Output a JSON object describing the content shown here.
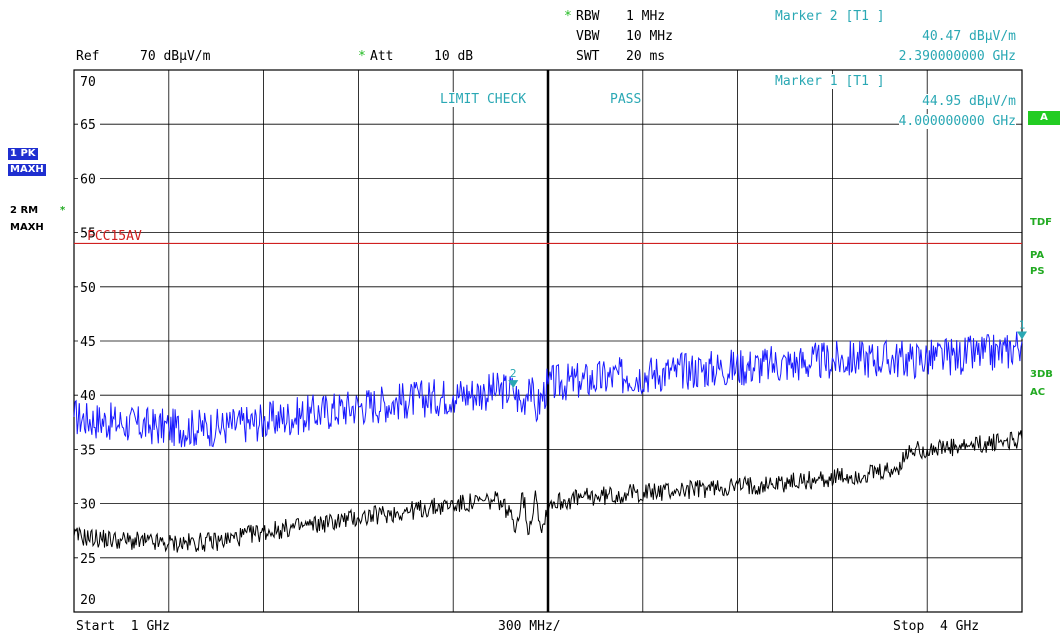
{
  "header": {
    "rbw_label": "RBW",
    "rbw_value": "1 MHz",
    "vbw_label": "VBW",
    "vbw_value": "10 MHz",
    "swt_label": "SWT",
    "swt_value": "20 ms",
    "ref_label": "Ref",
    "ref_value": "70 dBµV/m",
    "att_label": "Att",
    "att_value": "10 dB",
    "star": "*"
  },
  "markers": [
    {
      "title": "Marker 2 [T1 ]",
      "level": "40.47 dBµV/m",
      "freq": "2.390000000 GHz"
    },
    {
      "title": "Marker 1 [T1 ]",
      "level": "44.95 dBµV/m",
      "freq": "4.000000000 GHz"
    }
  ],
  "limit_check": {
    "label": "LIMIT CHECK",
    "result": "PASS"
  },
  "limit_line_label": "FCC15AV",
  "left_panel": {
    "trace1_label": "1 PK",
    "trace1_mode": "MAXH",
    "trace2_label": "2 RM",
    "trace2_mode": "MAXH",
    "trace2_star": "*"
  },
  "right_panel": {
    "a_box": "A",
    "tdf": "TDF",
    "pa": "PA",
    "ps": "PS",
    "db3": "3DB",
    "ac": "AC"
  },
  "footer": {
    "start": "Start  1 GHz",
    "span": "300 MHz/",
    "stop": "Stop  4 GHz"
  },
  "colors": {
    "grid": "#000000",
    "pk_trace": "#1a1aff",
    "rm_trace": "#000000",
    "limit": "#d02020",
    "marker": "#2aa8b4"
  },
  "chart_data": {
    "type": "line",
    "x_unit": "GHz",
    "xlim": [
      1.0,
      4.0
    ],
    "ylim": [
      20,
      70
    ],
    "y_unit": "dBµV/m",
    "yticks": [
      20,
      25,
      30,
      35,
      40,
      45,
      50,
      55,
      60,
      65,
      70
    ],
    "grid": true,
    "limit_line": {
      "name": "FCC15AV",
      "y": 54
    },
    "series": [
      {
        "name": "1 PK MAXH",
        "points": [
          [
            1.0,
            38.0
          ],
          [
            1.15,
            37.4
          ],
          [
            1.3,
            37.0
          ],
          [
            1.45,
            37.0
          ],
          [
            1.6,
            37.6
          ],
          [
            1.75,
            38.3
          ],
          [
            1.9,
            39.0
          ],
          [
            2.05,
            39.5
          ],
          [
            2.2,
            40.0
          ],
          [
            2.3,
            40.3
          ],
          [
            2.39,
            40.47
          ],
          [
            2.42,
            39.0
          ],
          [
            2.44,
            41.5
          ],
          [
            2.46,
            38.5
          ],
          [
            2.5,
            41.0
          ],
          [
            2.6,
            41.3
          ],
          [
            2.75,
            41.8
          ],
          [
            2.9,
            42.2
          ],
          [
            3.05,
            42.5
          ],
          [
            3.2,
            42.8
          ],
          [
            3.35,
            43.1
          ],
          [
            3.5,
            43.4
          ],
          [
            3.65,
            43.3
          ],
          [
            3.8,
            43.6
          ],
          [
            3.95,
            44.0
          ],
          [
            4.0,
            44.95
          ]
        ]
      },
      {
        "name": "2 RM MAXH",
        "points": [
          [
            1.0,
            27.0
          ],
          [
            1.15,
            26.6
          ],
          [
            1.3,
            26.3
          ],
          [
            1.45,
            26.5
          ],
          [
            1.6,
            27.4
          ],
          [
            1.75,
            28.0
          ],
          [
            1.9,
            28.7
          ],
          [
            2.05,
            29.3
          ],
          [
            2.2,
            29.9
          ],
          [
            2.35,
            30.3
          ],
          [
            2.4,
            28.0
          ],
          [
            2.42,
            31.0
          ],
          [
            2.44,
            27.2
          ],
          [
            2.46,
            31.2
          ],
          [
            2.48,
            27.3
          ],
          [
            2.5,
            30.0
          ],
          [
            2.6,
            30.5
          ],
          [
            2.75,
            30.9
          ],
          [
            2.9,
            31.2
          ],
          [
            3.05,
            31.5
          ],
          [
            3.2,
            31.8
          ],
          [
            3.35,
            32.2
          ],
          [
            3.5,
            32.6
          ],
          [
            3.6,
            33.0
          ],
          [
            3.65,
            35.0
          ],
          [
            3.8,
            35.1
          ],
          [
            3.95,
            35.8
          ],
          [
            4.0,
            35.9
          ]
        ]
      }
    ],
    "marker_points": [
      {
        "id": "2",
        "x": 2.39,
        "y": 40.47
      },
      {
        "id": "1",
        "x": 4.0,
        "y": 44.95
      }
    ]
  }
}
